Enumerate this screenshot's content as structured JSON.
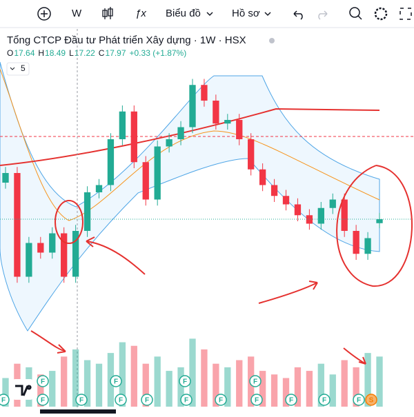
{
  "toolbar": {
    "interval": "W",
    "chart_menu": "Biểu đồ",
    "profile_menu": "Hồ sơ"
  },
  "chart_data": {
    "type": "candlestick",
    "title": "Tổng CTCP Đầu tư Phát triển Xây dựng · 1W · HSX",
    "ohlc_labels": {
      "open": "O",
      "high": "H",
      "low": "L",
      "close": "C"
    },
    "change": "+0.33 (+1.87%)",
    "indicator_badge": "5",
    "open": [
      21.0,
      21.8,
      13.2,
      16.0,
      15.2,
      16.8,
      13.2,
      17.0,
      20.2,
      20.8,
      24.6,
      26.9,
      22.7,
      19.6,
      24.0,
      24.6,
      25.6,
      29.1,
      27.8,
      25.9,
      26.2,
      24.6,
      22.1,
      20.8,
      19.9,
      19.2,
      18.3,
      17.6,
      18.9,
      19.6,
      17.0,
      15.1,
      17.64
    ],
    "high": [
      22.3,
      22.3,
      16.5,
      16.5,
      17.3,
      17.3,
      17.5,
      20.7,
      21.3,
      25.1,
      27.4,
      27.4,
      23.2,
      24.5,
      25.1,
      26.1,
      29.6,
      29.6,
      28.3,
      26.7,
      26.7,
      25.1,
      22.6,
      21.3,
      20.4,
      19.7,
      18.8,
      19.4,
      20.1,
      20.1,
      17.5,
      16.9,
      18.49
    ],
    "low": [
      20.5,
      12.7,
      12.7,
      14.7,
      14.7,
      12.7,
      12.7,
      16.5,
      19.7,
      20.3,
      24.1,
      22.2,
      19.1,
      19.1,
      23.5,
      24.1,
      25.1,
      27.3,
      25.4,
      25.4,
      24.1,
      21.6,
      20.3,
      19.4,
      18.7,
      17.8,
      17.1,
      17.1,
      18.4,
      16.5,
      14.6,
      14.6,
      17.22
    ],
    "close": [
      21.8,
      13.2,
      16.0,
      15.2,
      16.8,
      13.2,
      17.0,
      20.2,
      20.8,
      24.6,
      26.9,
      22.7,
      19.6,
      24.0,
      24.6,
      25.6,
      29.1,
      27.8,
      25.9,
      26.2,
      24.6,
      22.1,
      20.8,
      19.9,
      19.2,
      18.3,
      17.6,
      18.9,
      19.6,
      17.0,
      15.1,
      16.4,
      17.97
    ],
    "volume": [
      40,
      60,
      55,
      45,
      50,
      70,
      80,
      65,
      60,
      75,
      90,
      85,
      60,
      70,
      50,
      55,
      95,
      80,
      60,
      55,
      65,
      70,
      50,
      45,
      40,
      55,
      50,
      60,
      45,
      65,
      55,
      75,
      70
    ],
    "ylim": [
      11,
      31
    ],
    "volume_ylim": [
      0,
      130
    ],
    "up_color": "#22ab94",
    "down_color": "#f23645",
    "events": [
      "F",
      "F",
      "F",
      "F",
      "F",
      "F",
      "F",
      "F",
      "F",
      "F",
      "F",
      "S",
      "F",
      "F",
      "F",
      "F"
    ]
  }
}
